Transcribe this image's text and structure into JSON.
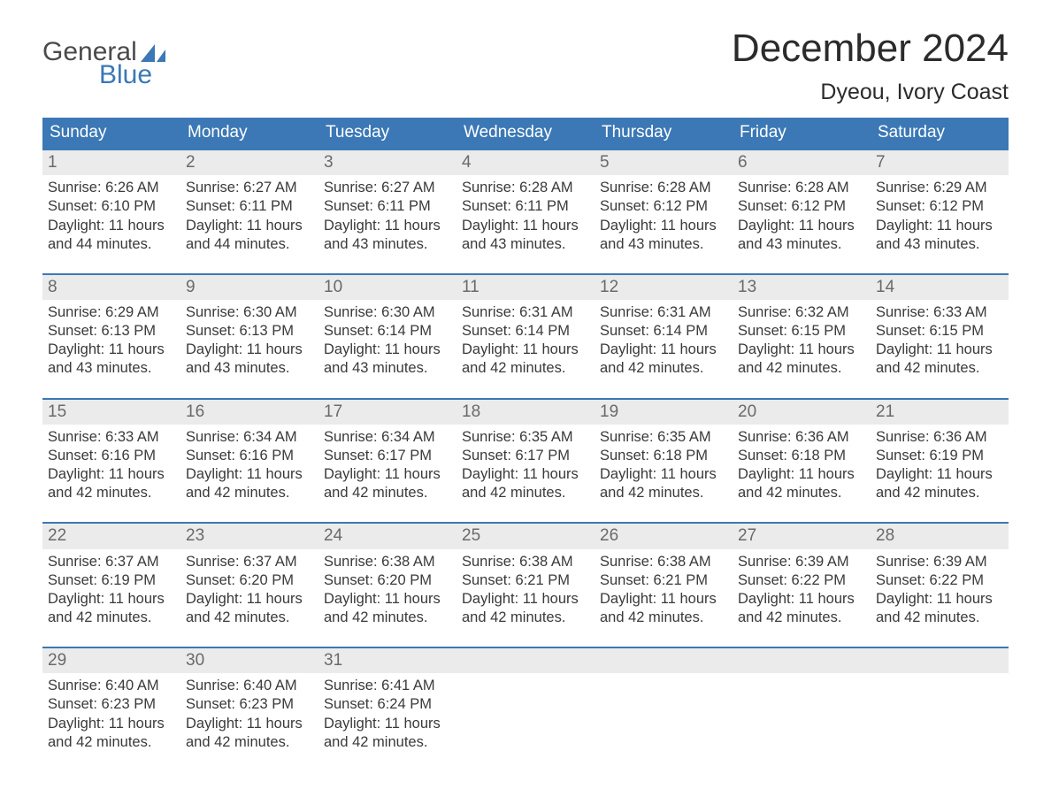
{
  "logo": {
    "top": "General",
    "bottom": "Blue",
    "sail_color": "#3b78b5",
    "text_gray": "#4a4a4a"
  },
  "title": "December 2024",
  "location": "Dyeou, Ivory Coast",
  "colors": {
    "header_bg": "#3b78b5",
    "header_text": "#ffffff",
    "week_rule": "#3b78b5",
    "daynum_bg": "#ebebeb",
    "daynum_text": "#6a6a6a",
    "body_text": "#3a3a3a",
    "page_bg": "#ffffff"
  },
  "typography": {
    "month_fontsize": 44,
    "location_fontsize": 25,
    "dayhead_fontsize": 19,
    "body_fontsize": 16.5
  },
  "daynames": [
    "Sunday",
    "Monday",
    "Tuesday",
    "Wednesday",
    "Thursday",
    "Friday",
    "Saturday"
  ],
  "labels": {
    "sunrise": "Sunrise:",
    "sunset": "Sunset:",
    "daylight": "Daylight:",
    "hours": "hours",
    "and": "and",
    "minutes": "minutes."
  },
  "weeks": [
    [
      {
        "n": "1",
        "sunrise": "6:26 AM",
        "sunset": "6:10 PM",
        "dl_h": "11",
        "dl_m": "44"
      },
      {
        "n": "2",
        "sunrise": "6:27 AM",
        "sunset": "6:11 PM",
        "dl_h": "11",
        "dl_m": "44"
      },
      {
        "n": "3",
        "sunrise": "6:27 AM",
        "sunset": "6:11 PM",
        "dl_h": "11",
        "dl_m": "43"
      },
      {
        "n": "4",
        "sunrise": "6:28 AM",
        "sunset": "6:11 PM",
        "dl_h": "11",
        "dl_m": "43"
      },
      {
        "n": "5",
        "sunrise": "6:28 AM",
        "sunset": "6:12 PM",
        "dl_h": "11",
        "dl_m": "43"
      },
      {
        "n": "6",
        "sunrise": "6:28 AM",
        "sunset": "6:12 PM",
        "dl_h": "11",
        "dl_m": "43"
      },
      {
        "n": "7",
        "sunrise": "6:29 AM",
        "sunset": "6:12 PM",
        "dl_h": "11",
        "dl_m": "43"
      }
    ],
    [
      {
        "n": "8",
        "sunrise": "6:29 AM",
        "sunset": "6:13 PM",
        "dl_h": "11",
        "dl_m": "43"
      },
      {
        "n": "9",
        "sunrise": "6:30 AM",
        "sunset": "6:13 PM",
        "dl_h": "11",
        "dl_m": "43"
      },
      {
        "n": "10",
        "sunrise": "6:30 AM",
        "sunset": "6:14 PM",
        "dl_h": "11",
        "dl_m": "43"
      },
      {
        "n": "11",
        "sunrise": "6:31 AM",
        "sunset": "6:14 PM",
        "dl_h": "11",
        "dl_m": "42"
      },
      {
        "n": "12",
        "sunrise": "6:31 AM",
        "sunset": "6:14 PM",
        "dl_h": "11",
        "dl_m": "42"
      },
      {
        "n": "13",
        "sunrise": "6:32 AM",
        "sunset": "6:15 PM",
        "dl_h": "11",
        "dl_m": "42"
      },
      {
        "n": "14",
        "sunrise": "6:33 AM",
        "sunset": "6:15 PM",
        "dl_h": "11",
        "dl_m": "42"
      }
    ],
    [
      {
        "n": "15",
        "sunrise": "6:33 AM",
        "sunset": "6:16 PM",
        "dl_h": "11",
        "dl_m": "42"
      },
      {
        "n": "16",
        "sunrise": "6:34 AM",
        "sunset": "6:16 PM",
        "dl_h": "11",
        "dl_m": "42"
      },
      {
        "n": "17",
        "sunrise": "6:34 AM",
        "sunset": "6:17 PM",
        "dl_h": "11",
        "dl_m": "42"
      },
      {
        "n": "18",
        "sunrise": "6:35 AM",
        "sunset": "6:17 PM",
        "dl_h": "11",
        "dl_m": "42"
      },
      {
        "n": "19",
        "sunrise": "6:35 AM",
        "sunset": "6:18 PM",
        "dl_h": "11",
        "dl_m": "42"
      },
      {
        "n": "20",
        "sunrise": "6:36 AM",
        "sunset": "6:18 PM",
        "dl_h": "11",
        "dl_m": "42"
      },
      {
        "n": "21",
        "sunrise": "6:36 AM",
        "sunset": "6:19 PM",
        "dl_h": "11",
        "dl_m": "42"
      }
    ],
    [
      {
        "n": "22",
        "sunrise": "6:37 AM",
        "sunset": "6:19 PM",
        "dl_h": "11",
        "dl_m": "42"
      },
      {
        "n": "23",
        "sunrise": "6:37 AM",
        "sunset": "6:20 PM",
        "dl_h": "11",
        "dl_m": "42"
      },
      {
        "n": "24",
        "sunrise": "6:38 AM",
        "sunset": "6:20 PM",
        "dl_h": "11",
        "dl_m": "42"
      },
      {
        "n": "25",
        "sunrise": "6:38 AM",
        "sunset": "6:21 PM",
        "dl_h": "11",
        "dl_m": "42"
      },
      {
        "n": "26",
        "sunrise": "6:38 AM",
        "sunset": "6:21 PM",
        "dl_h": "11",
        "dl_m": "42"
      },
      {
        "n": "27",
        "sunrise": "6:39 AM",
        "sunset": "6:22 PM",
        "dl_h": "11",
        "dl_m": "42"
      },
      {
        "n": "28",
        "sunrise": "6:39 AM",
        "sunset": "6:22 PM",
        "dl_h": "11",
        "dl_m": "42"
      }
    ],
    [
      {
        "n": "29",
        "sunrise": "6:40 AM",
        "sunset": "6:23 PM",
        "dl_h": "11",
        "dl_m": "42"
      },
      {
        "n": "30",
        "sunrise": "6:40 AM",
        "sunset": "6:23 PM",
        "dl_h": "11",
        "dl_m": "42"
      },
      {
        "n": "31",
        "sunrise": "6:41 AM",
        "sunset": "6:24 PM",
        "dl_h": "11",
        "dl_m": "42"
      },
      null,
      null,
      null,
      null
    ]
  ]
}
